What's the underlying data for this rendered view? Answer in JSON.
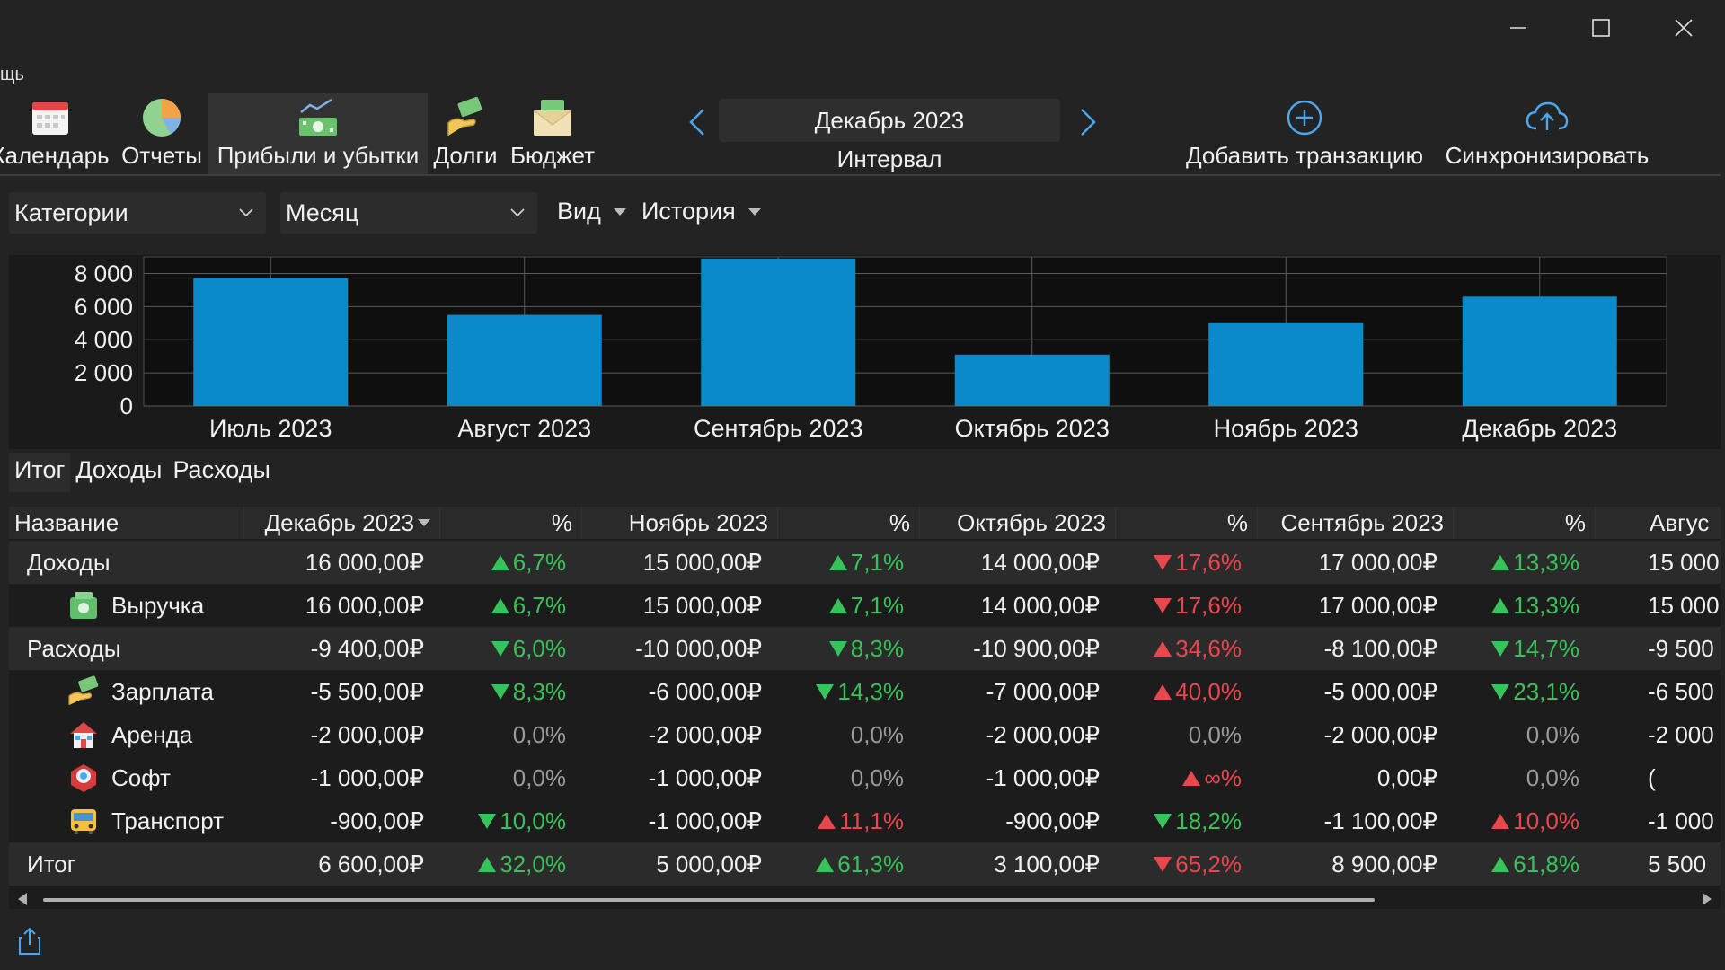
{
  "window": {
    "menu_fragment": "щь"
  },
  "toolbar": {
    "calendar": "Календарь",
    "reports": "Отчеты",
    "profit_loss": "Прибыли и убытки",
    "debts": "Долги",
    "budget": "Бюджет",
    "add_transaction": "Добавить транзакцию",
    "sync": "Синхронизировать"
  },
  "period": {
    "value": "Декабрь 2023",
    "label": "Интервал"
  },
  "filters": {
    "group_by": "Категории",
    "period": "Месяц",
    "view": "Вид",
    "history": "История"
  },
  "chart_data": {
    "type": "bar",
    "categories": [
      "Июль 2023",
      "Август 2023",
      "Сентябрь 2023",
      "Октябрь 2023",
      "Ноябрь 2023",
      "Декабрь 2023"
    ],
    "values": [
      7700,
      5500,
      8900,
      3100,
      5000,
      6600
    ],
    "ytick_labels": [
      "8 000",
      "6 000",
      "4 000",
      "2 000",
      "0"
    ],
    "yticks": [
      8000,
      6000,
      4000,
      2000,
      0
    ],
    "ylim": [
      0,
      9000
    ],
    "bar_color": "#0a8acb",
    "grid": true
  },
  "tabs": [
    "Итог",
    "Доходы",
    "Расходы"
  ],
  "table": {
    "headers": [
      "Название",
      "Декабрь 2023",
      "%",
      "Ноябрь 2023",
      "%",
      "Октябрь 2023",
      "%",
      "Сентябрь 2023",
      "%",
      "Авгус"
    ],
    "rows": [
      {
        "name": "Доходы",
        "cells": [
          "16 000,00₽",
          "6,7%",
          "15 000,00₽",
          "7,1%",
          "14 000,00₽",
          "17,6%",
          "17 000,00₽",
          "13,3%",
          "15 000"
        ]
      },
      {
        "name": "Выручка",
        "cells": [
          "16 000,00₽",
          "6,7%",
          "15 000,00₽",
          "7,1%",
          "14 000,00₽",
          "17,6%",
          "17 000,00₽",
          "13,3%",
          "15 000"
        ]
      },
      {
        "name": "Расходы",
        "cells": [
          "-9 400,00₽",
          "6,0%",
          "-10 000,00₽",
          "8,3%",
          "-10 900,00₽",
          "34,6%",
          "-8 100,00₽",
          "14,7%",
          "-9 500"
        ]
      },
      {
        "name": "Зарплата",
        "cells": [
          "-5 500,00₽",
          "8,3%",
          "-6 000,00₽",
          "14,3%",
          "-7 000,00₽",
          "40,0%",
          "-5 000,00₽",
          "23,1%",
          "-6 500"
        ]
      },
      {
        "name": "Аренда",
        "cells": [
          "-2 000,00₽",
          "0,0%",
          "-2 000,00₽",
          "0,0%",
          "-2 000,00₽",
          "0,0%",
          "-2 000,00₽",
          "0,0%",
          "-2 000"
        ]
      },
      {
        "name": "Софт",
        "cells": [
          "-1 000,00₽",
          "0,0%",
          "-1 000,00₽",
          "0,0%",
          "-1 000,00₽",
          "∞%",
          "0,00₽",
          "0,0%",
          "("
        ]
      },
      {
        "name": "Транспорт",
        "cells": [
          "-900,00₽",
          "10,0%",
          "-1 000,00₽",
          "11,1%",
          "-900,00₽",
          "18,2%",
          "-1 100,00₽",
          "10,0%",
          "-1 000"
        ]
      },
      {
        "name": "Итог",
        "cells": [
          "6 600,00₽",
          "32,0%",
          "5 000,00₽",
          "61,3%",
          "3 100,00₽",
          "65,2%",
          "8 900,00₽",
          "61,8%",
          "5 500"
        ]
      }
    ]
  }
}
